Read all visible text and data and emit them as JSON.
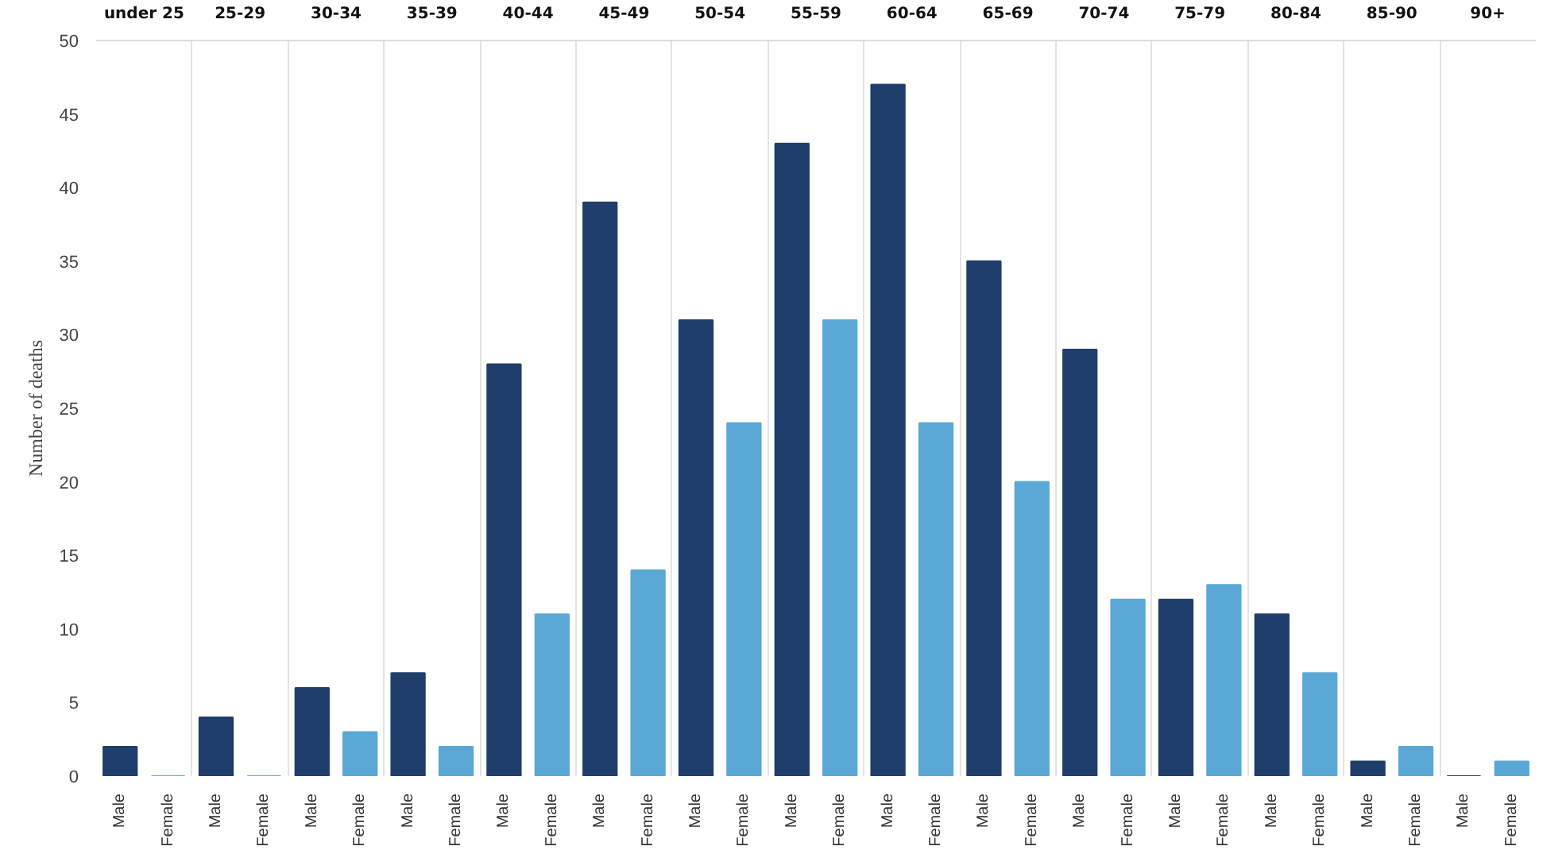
{
  "chart_data": {
    "type": "bar",
    "ylabel": "Number of deaths",
    "categories": [
      "under 25",
      "25-29",
      "30-34",
      "35-39",
      "40-44",
      "45-49",
      "50-54",
      "55-59",
      "60-64",
      "65-69",
      "70-74",
      "75-79",
      "80-84",
      "85-90",
      "90+"
    ],
    "series": [
      {
        "name": "Male",
        "color": "#1f3e6b",
        "values": [
          2,
          4,
          6,
          7,
          28,
          39,
          31,
          43,
          47,
          35,
          29,
          12,
          11,
          1,
          0
        ]
      },
      {
        "name": "Female",
        "color": "#5aa8d6",
        "values": [
          0,
          0,
          3,
          2,
          11,
          14,
          24,
          31,
          24,
          20,
          12,
          13,
          7,
          2,
          1
        ]
      }
    ],
    "ylim": [
      0,
      50
    ],
    "yticks": [
      0,
      5,
      10,
      15,
      20,
      25,
      30,
      35,
      40,
      45,
      50
    ]
  }
}
